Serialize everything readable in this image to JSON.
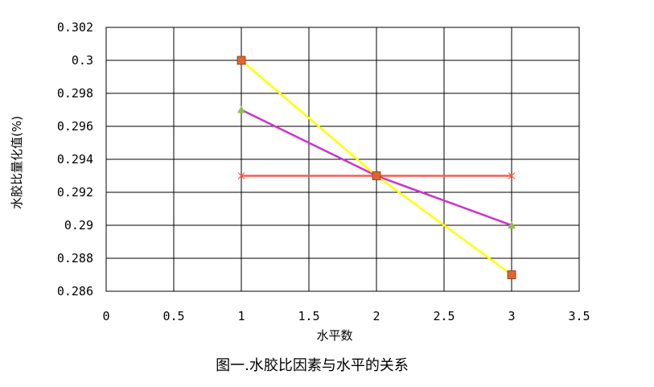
{
  "chart_data": {
    "type": "line",
    "title": "",
    "caption": "图一.水胶比因素与水平的关系",
    "xlabel": "水平数",
    "ylabel": "水胶比量化值(%)",
    "xlim": [
      0,
      3.5
    ],
    "ylim": [
      0.286,
      0.302
    ],
    "xticks": [
      0,
      0.5,
      1,
      1.5,
      2,
      2.5,
      3,
      3.5
    ],
    "xtick_labels": [
      "0",
      "0.5",
      "1",
      "1.5",
      "2",
      "2.5",
      "3",
      "3.5"
    ],
    "yticks": [
      0.286,
      0.288,
      0.29,
      0.292,
      0.294,
      0.296,
      0.298,
      0.3,
      0.302
    ],
    "ytick_labels": [
      "0.286",
      "0.288",
      "0.29",
      "0.292",
      "0.294",
      "0.296",
      "0.298",
      "0.3",
      "0.302"
    ],
    "grid": true,
    "legend": "none",
    "series": [
      {
        "color": "#ff5a4e",
        "marker": "x",
        "x": [
          1,
          2,
          3
        ],
        "y": [
          0.293,
          0.293,
          0.293
        ]
      },
      {
        "color": "#cc33cc",
        "marker": "triangle",
        "marker_color": "#8fbf4f",
        "x": [
          1,
          2,
          3
        ],
        "y": [
          0.297,
          0.293,
          0.29
        ]
      },
      {
        "color": "#333333",
        "marker": "none",
        "x": [
          1,
          2,
          3
        ],
        "y": [
          0.3,
          0.293,
          0.287
        ]
      },
      {
        "color": "#ffff00",
        "marker": "square",
        "marker_color": "#e0662e",
        "x": [
          1,
          2,
          3
        ],
        "y": [
          0.3,
          0.293,
          0.287
        ]
      }
    ]
  }
}
